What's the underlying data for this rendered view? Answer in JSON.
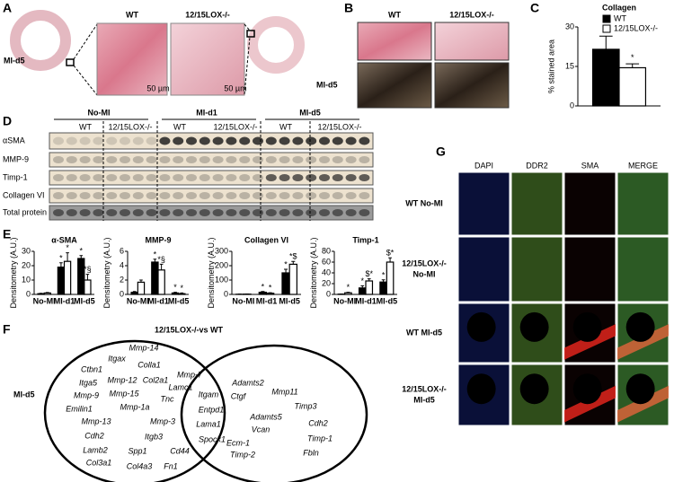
{
  "panel_labels": [
    "A",
    "B",
    "C",
    "D",
    "E",
    "F",
    "G"
  ],
  "panel_a": {
    "row_label": "MI-d5",
    "columns": [
      "WT",
      "12/15LOX-/-"
    ],
    "scale_bars": [
      "50 µm",
      "50 µm"
    ]
  },
  "panel_b": {
    "row_label": "MI-d5",
    "columns": [
      "WT",
      "12/15LOX-/-"
    ]
  },
  "panel_d": {
    "groups": [
      "No-MI",
      "MI-d1",
      "MI-d5"
    ],
    "genotypes": [
      "WT",
      "12/15LOX-/-",
      "WT",
      "12/15LOX-/-",
      "WT",
      "12/15LOX-/-"
    ],
    "rows": [
      "αSMA",
      "MMP-9",
      "Timp-1",
      "Collagen VI",
      "Total protein"
    ]
  },
  "panel_f": {
    "title": "12/15LOX-/-vs WT",
    "row_label": "MI-d5",
    "wt_only": [
      "Itgax",
      "Mmp-14",
      "Ctbn1",
      "Colla1",
      "Itga5",
      "Mmp-12",
      "Col2a1",
      "Mmp-7",
      "Mmp-9",
      "Mmp-15",
      "Lamc1",
      "Tnc",
      "Emilin1",
      "Mmp-1a",
      "Mmp-13",
      "Mmp-3",
      "Cdh2",
      "Itgb3",
      "Lamb2",
      "Spp1",
      "Cd44",
      "Col3a1",
      "Col4a3",
      "Fn1"
    ],
    "shared": [
      "Itgam",
      "Entpd1",
      "Lama1",
      "Spock1"
    ],
    "lox_only": [
      "Adamts2",
      "Ctgf",
      "Mmp11",
      "Timp3",
      "Adamts5",
      "Cdh2",
      "Vcan",
      "Ecm-1",
      "Timp-1",
      "Timp-2",
      "Fbln"
    ]
  },
  "panel_g": {
    "channels": [
      "DAPI",
      "DDR2",
      "SMA",
      "MERGE"
    ],
    "rows": [
      [
        "WT No-MI"
      ],
      [
        "12/15LOX-/-",
        "No-MI"
      ],
      [
        "WT MI-d5"
      ],
      [
        "12/15LOX-/-",
        "MI-d5"
      ]
    ]
  },
  "chart_data": [
    {
      "type": "bar",
      "title": "Collagen",
      "ylabel": "% stained area",
      "ylim": [
        0,
        30
      ],
      "yticks": [
        0,
        15,
        30
      ],
      "series": [
        {
          "name": "WT",
          "color": "#000000",
          "values": [
            21.5
          ],
          "errors": [
            5
          ]
        },
        {
          "name": "12/15LOX-/-",
          "color": "#ffffff",
          "values": [
            14.5
          ],
          "errors": [
            1.5
          ],
          "annotations": [
            "*"
          ]
        }
      ]
    },
    {
      "type": "bar",
      "title": "α-SMA",
      "ylabel": "Densitometry (A.U.)",
      "ylim": [
        0,
        30
      ],
      "yticks": [
        0,
        10,
        20,
        30
      ],
      "categories": [
        "No-MI",
        "MI-d1",
        "MI-d5"
      ],
      "series": [
        {
          "color": "#000000",
          "values": [
            0.5,
            19,
            25
          ],
          "errors": [
            0.3,
            3,
            2
          ],
          "annotations": [
            null,
            "*",
            "*"
          ]
        },
        {
          "color": "#ffffff",
          "values": [
            1,
            23,
            10
          ],
          "errors": [
            0.3,
            6,
            4
          ],
          "annotations": [
            null,
            "*",
            "*§"
          ]
        }
      ]
    },
    {
      "type": "bar",
      "title": "MMP-9",
      "ylabel": "Densitometry (A.U.)",
      "ylim": [
        0,
        6
      ],
      "yticks": [
        0,
        2,
        4,
        6
      ],
      "categories": [
        "No-MI",
        "MI-d1",
        "MI-d5"
      ],
      "series": [
        {
          "color": "#000000",
          "values": [
            0.3,
            4.5,
            0.2
          ],
          "errors": [
            0.1,
            0.4,
            0.1
          ],
          "annotations": [
            null,
            "*",
            "*"
          ]
        },
        {
          "color": "#ffffff",
          "values": [
            1.7,
            3.4,
            0.1
          ],
          "errors": [
            0.3,
            0.8,
            0.1
          ],
          "annotations": [
            null,
            "*§",
            "*"
          ]
        }
      ]
    },
    {
      "type": "bar",
      "title": "Collagen VI",
      "ylabel": "Densitometry (A.U.)",
      "ylim": [
        0,
        300
      ],
      "yticks": [
        0,
        100,
        200,
        300
      ],
      "categories": [
        "No-MI",
        "MI-d1",
        "MI-d5"
      ],
      "series": [
        {
          "color": "#000000",
          "values": [
            1,
            15,
            150
          ],
          "errors": [
            1,
            5,
            25
          ],
          "annotations": [
            null,
            "*",
            "*"
          ]
        },
        {
          "color": "#ffffff",
          "values": [
            2,
            8,
            210
          ],
          "errors": [
            1,
            4,
            20
          ],
          "annotations": [
            null,
            "*",
            "*$"
          ]
        }
      ]
    },
    {
      "type": "bar",
      "title": "Timp-1",
      "ylabel": "Densitometry (A.U.)",
      "ylim": [
        0,
        80
      ],
      "yticks": [
        0,
        20,
        40,
        60,
        80
      ],
      "categories": [
        "No-MI",
        "MI-d1",
        "MI-d5"
      ],
      "series": [
        {
          "color": "#000000",
          "values": [
            0.5,
            12,
            23
          ],
          "errors": [
            0.3,
            4,
            4
          ],
          "annotations": [
            null,
            "*",
            "*"
          ]
        },
        {
          "color": "#ffffff",
          "values": [
            3,
            25,
            60
          ],
          "errors": [
            1,
            4,
            8
          ],
          "annotations": [
            "*",
            "$*",
            "$*"
          ]
        }
      ]
    }
  ]
}
